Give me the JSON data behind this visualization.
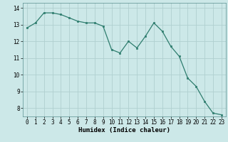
{
  "x": [
    0,
    1,
    2,
    3,
    4,
    5,
    6,
    7,
    8,
    9,
    10,
    11,
    12,
    13,
    14,
    15,
    16,
    17,
    18,
    19,
    20,
    21,
    22,
    23
  ],
  "y": [
    12.8,
    13.1,
    13.7,
    13.7,
    13.6,
    13.4,
    13.2,
    13.1,
    13.1,
    12.9,
    11.5,
    11.3,
    12.0,
    11.6,
    12.3,
    13.1,
    12.6,
    11.7,
    11.1,
    9.8,
    9.3,
    8.4,
    7.7,
    7.6
  ],
  "line_color": "#2e7d6e",
  "marker": "s",
  "marker_size": 2,
  "bg_color": "#cce8e8",
  "grid_color": "#b0d0d0",
  "xlabel": "Humidex (Indice chaleur)",
  "xlim": [
    -0.5,
    23.5
  ],
  "ylim": [
    7.5,
    14.3
  ],
  "yticks": [
    8,
    9,
    10,
    11,
    12,
    13,
    14
  ],
  "xticks": [
    0,
    1,
    2,
    3,
    4,
    5,
    6,
    7,
    8,
    9,
    10,
    11,
    12,
    13,
    14,
    15,
    16,
    17,
    18,
    19,
    20,
    21,
    22,
    23
  ],
  "tick_label_fontsize": 5.5,
  "xlabel_fontsize": 6.5
}
